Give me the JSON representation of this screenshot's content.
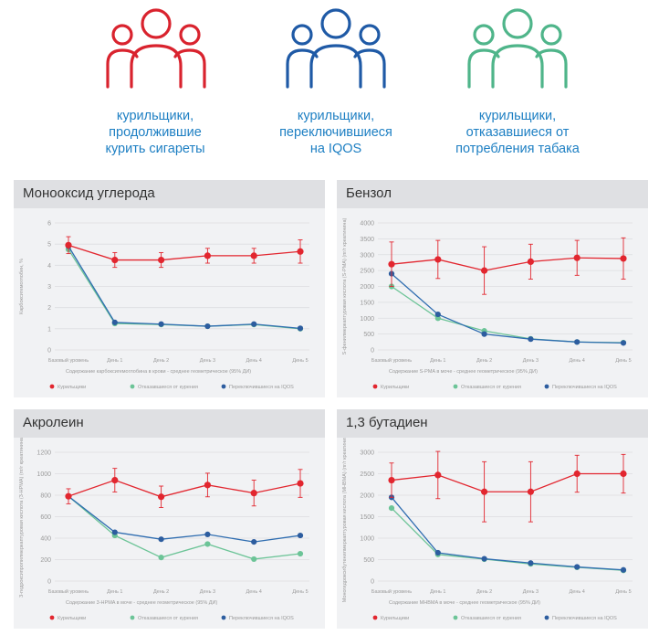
{
  "groups": [
    {
      "key": "continued",
      "color": "#d9232e",
      "caption": [
        "курильщики,",
        "продолжившие",
        "курить сигареты"
      ]
    },
    {
      "key": "switched",
      "color": "#1f5aa6",
      "caption": [
        "курильщики,",
        "переключившиеся",
        "на IQOS"
      ]
    },
    {
      "key": "quit",
      "color": "#4fb58a",
      "caption": [
        "курильщики,",
        "отказавшиеся от",
        "потребления табака"
      ]
    }
  ],
  "icons": {
    "continued": "people-group-icon",
    "switched": "people-group-icon",
    "quit": "people-group-icon"
  },
  "colors": {
    "smokers": "#e2262f",
    "quit": "#6cc497",
    "iqos": "#2d5d9f",
    "line_iqos": "#2f6db0"
  },
  "legend_labels": [
    "Курильщики",
    "Отказавшиеся от курения",
    "Переключившиеся на IQOS"
  ],
  "x_categories": [
    "Базовый уровень",
    "День 1",
    "День 2",
    "День 3",
    "День 4",
    "День 5"
  ],
  "chart_data": [
    {
      "type": "line",
      "title": "Монооксид углерода",
      "ylabel": "Карбоксигемоглобин, %",
      "xlabel": "Содержание карбоксигемоглобина в крови - среднее геометрическое (95% ДИ)",
      "ylim": [
        0,
        6
      ],
      "yticks": [
        0,
        1,
        2,
        3,
        4,
        5,
        6
      ],
      "series": [
        {
          "name": "Курильщики",
          "values": [
            4.95,
            4.25,
            4.25,
            4.45,
            4.45,
            4.65
          ],
          "err": [
            0.4,
            0.35,
            0.35,
            0.35,
            0.35,
            0.55
          ]
        },
        {
          "name": "Отказавшиеся от курения",
          "values": [
            4.75,
            1.25,
            1.2,
            1.12,
            1.2,
            1.0
          ]
        },
        {
          "name": "Переключившиеся на IQOS",
          "values": [
            4.9,
            1.3,
            1.22,
            1.12,
            1.22,
            1.02
          ]
        }
      ]
    },
    {
      "type": "line",
      "title": "Бензол",
      "ylabel": "S-фенилмеркаптуровая кислота (S-PMA) (пг/г креатинина)",
      "xlabel": "Содержание S-PMA в моче - среднее геометрическое (95% ДИ)",
      "ylim": [
        0,
        4000
      ],
      "yticks": [
        0,
        500,
        1000,
        1500,
        2000,
        2500,
        3000,
        3500,
        4000
      ],
      "series": [
        {
          "name": "Курильщики",
          "values": [
            2700,
            2850,
            2500,
            2780,
            2900,
            2880
          ],
          "err": [
            700,
            600,
            750,
            550,
            550,
            650
          ]
        },
        {
          "name": "Отказавшиеся от курения",
          "values": [
            2000,
            1000,
            600,
            350,
            250,
            230
          ]
        },
        {
          "name": "Переключившиеся на IQOS",
          "values": [
            2400,
            1120,
            500,
            340,
            250,
            220
          ]
        }
      ]
    },
    {
      "type": "line",
      "title": "Акролеин",
      "ylabel": "3-гидроксипропилмеркаптуровая кислота (3-HPMA) (пг/г креатинина)",
      "xlabel": "Содержание 3-HPMA в моче - среднее геометрическое (95% ДИ)",
      "ylim": [
        0,
        1200
      ],
      "yticks": [
        0,
        200,
        400,
        600,
        800,
        1000,
        1200
      ],
      "series": [
        {
          "name": "Курильщики",
          "values": [
            790,
            940,
            785,
            895,
            820,
            910
          ],
          "err": [
            70,
            110,
            100,
            110,
            120,
            130
          ]
        },
        {
          "name": "Отказавшиеся от курения",
          "values": [
            790,
            425,
            220,
            345,
            205,
            255
          ]
        },
        {
          "name": "Переключившиеся на IQOS",
          "values": [
            790,
            455,
            390,
            435,
            365,
            425
          ]
        }
      ]
    },
    {
      "type": "line",
      "title": "1,3 бутадиен",
      "ylabel": "Моногидроксибутенилмеркаптуровая кислота (MHBMA) (пг/г креатинина)",
      "xlabel": "Содержание MHBMA в моче - среднее геометрическое (95% ДИ)",
      "ylim": [
        0,
        3000
      ],
      "yticks": [
        0,
        500,
        1000,
        1500,
        2000,
        2500,
        3000
      ],
      "series": [
        {
          "name": "Курильщики",
          "values": [
            2350,
            2470,
            2080,
            2080,
            2500,
            2500
          ],
          "err": [
            400,
            550,
            700,
            700,
            430,
            450
          ]
        },
        {
          "name": "Отказавшиеся от курения",
          "values": [
            1700,
            620,
            510,
            400,
            320,
            250
          ]
        },
        {
          "name": "Переключившиеся на IQOS",
          "values": [
            1950,
            660,
            520,
            420,
            330,
            260
          ]
        }
      ]
    }
  ]
}
